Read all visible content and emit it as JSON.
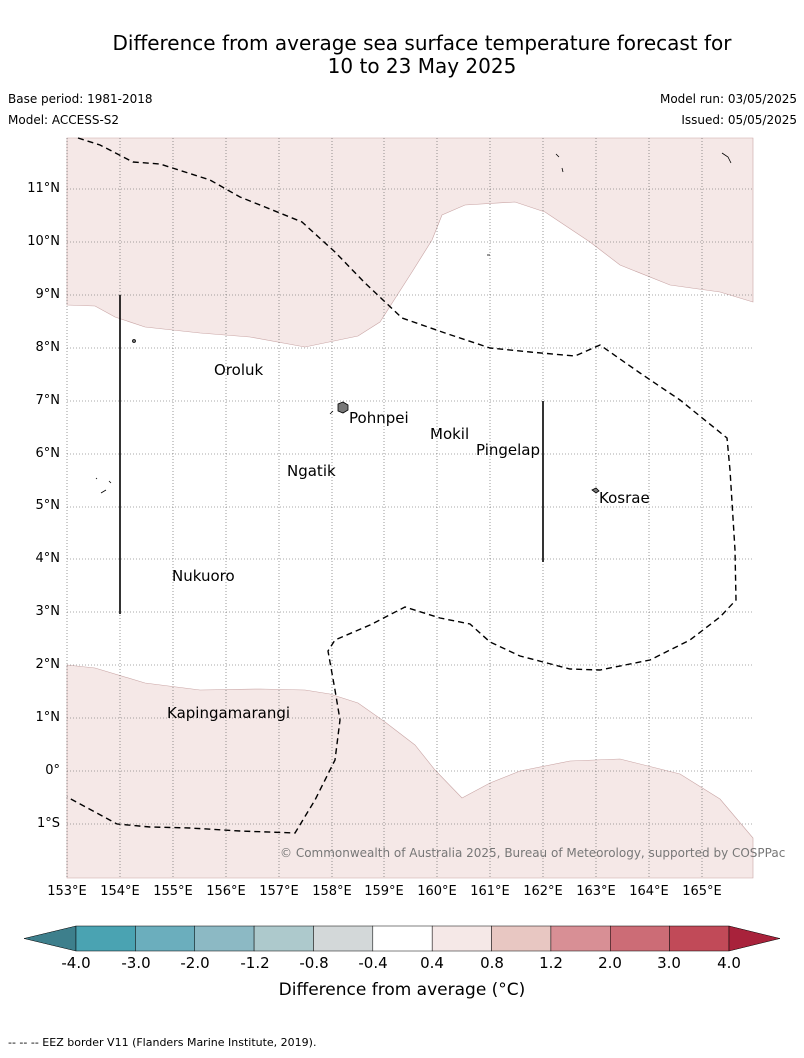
{
  "title_line1": "Difference from average sea surface temperature forecast for",
  "title_line2": "10 to 23 May 2025",
  "base_period": "Base period: 1981-2018",
  "model": "Model: ACCESS-S2",
  "model_run": "Model run: 03/05/2025",
  "issued": "Issued: 05/05/2025",
  "copyright": "© Commonwealth of Australia 2025, Bureau of Meteorology, supported by COSPPac",
  "lat_ticks": [
    "11°N",
    "10°N",
    "9°N",
    "8°N",
    "7°N",
    "6°N",
    "5°N",
    "4°N",
    "3°N",
    "2°N",
    "1°N",
    "0°",
    "1°S"
  ],
  "lon_ticks": [
    "153°E",
    "154°E",
    "155°E",
    "156°E",
    "157°E",
    "158°E",
    "159°E",
    "160°E",
    "161°E",
    "162°E",
    "163°E",
    "164°E",
    "165°E"
  ],
  "places": {
    "oroluk": "Oroluk",
    "pohnpei": "Pohnpei",
    "mokil": "Mokil",
    "pingelap": "Pingelap",
    "ngatik": "Ngatik",
    "kosrae": "Kosrae",
    "nukuoro": "Nukuoro",
    "kapingamarangi": "Kapingamarangi"
  },
  "colorbar": {
    "title": "Difference from average (°C)",
    "ticks": [
      "-4.0",
      "-3.0",
      "-2.0",
      "-1.2",
      "-0.8",
      "-0.4",
      "0.4",
      "0.8",
      "1.2",
      "2.0",
      "3.0",
      "4.0"
    ],
    "colors": [
      "#4aa3b2",
      "#6baebd",
      "#8cb9c4",
      "#adc9cc",
      "#d3d8d9",
      "#ffffff",
      "#f5e8e7",
      "#e8c7c2",
      "#d88f95",
      "#cc6c76",
      "#c14a58"
    ],
    "under_color": "#3d7f8c",
    "over_color": "#a8223b"
  },
  "anomaly_fill_color": "#f5e8e7",
  "footer": "--  --  -- EEZ border V11 (Flanders Marine Institute, 2019)."
}
